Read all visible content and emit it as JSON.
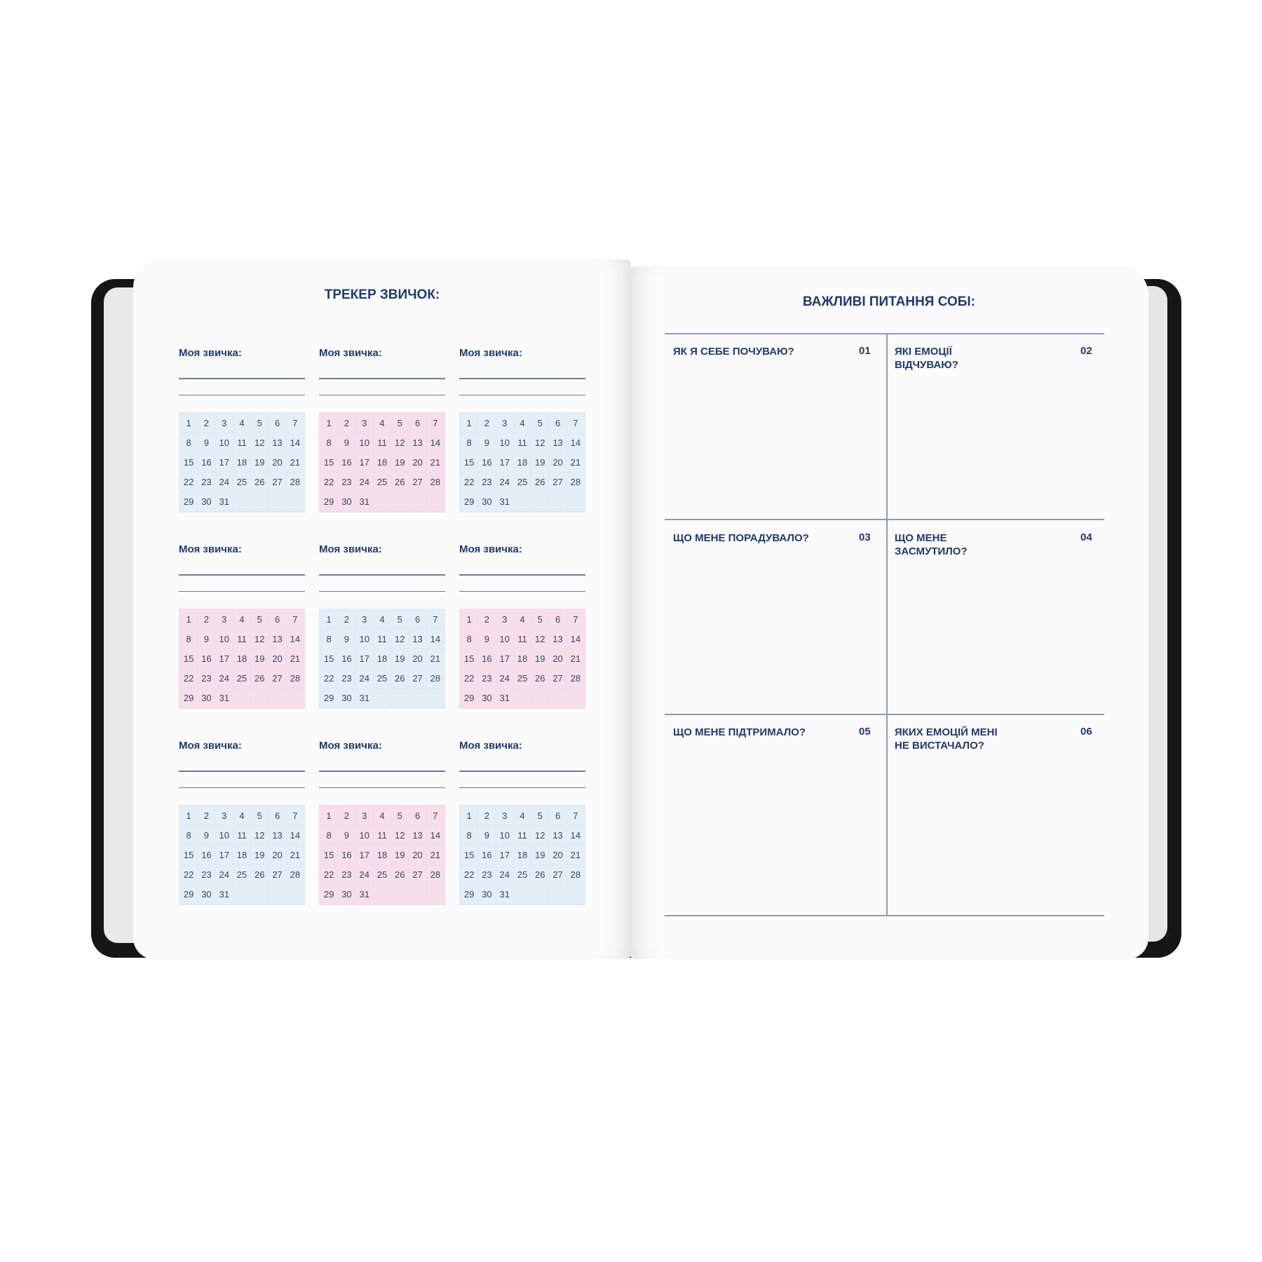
{
  "left_page": {
    "title": "ТРЕКЕР ЗВИЧОК:",
    "habit_label": "Моя звичка:",
    "days": [
      1,
      2,
      3,
      4,
      5,
      6,
      7,
      8,
      9,
      10,
      11,
      12,
      13,
      14,
      15,
      16,
      17,
      18,
      19,
      20,
      21,
      22,
      23,
      24,
      25,
      26,
      27,
      28,
      29,
      30,
      31
    ],
    "tracker_colors": [
      "blue",
      "pink",
      "blue",
      "pink",
      "blue",
      "pink",
      "blue",
      "pink",
      "blue"
    ],
    "colors": {
      "blue": "#e3eef7",
      "pink": "#f6dfea",
      "text": "#1f3a6e"
    }
  },
  "right_page": {
    "title": "ВАЖЛИВІ ПИТАННЯ СОБІ:",
    "questions": [
      {
        "text": "ЯК Я СЕБЕ ПОЧУВАЮ?",
        "num": "01"
      },
      {
        "text": "ЯКІ ЕМОЦІЇ ВІДЧУВАЮ?",
        "num": "02"
      },
      {
        "text": "ЩО МЕНЕ ПОРАДУВАЛО?",
        "num": "03"
      },
      {
        "text": "ЩО МЕНЕ ЗАСМУТИЛО?",
        "num": "04"
      },
      {
        "text": "ЩО МЕНЕ ПІДТРИМАЛО?",
        "num": "05"
      },
      {
        "text": "ЯКИХ ЕМОЦІЙ МЕНІ НЕ ВИСТАЧАЛО?",
        "num": "06"
      }
    ]
  }
}
